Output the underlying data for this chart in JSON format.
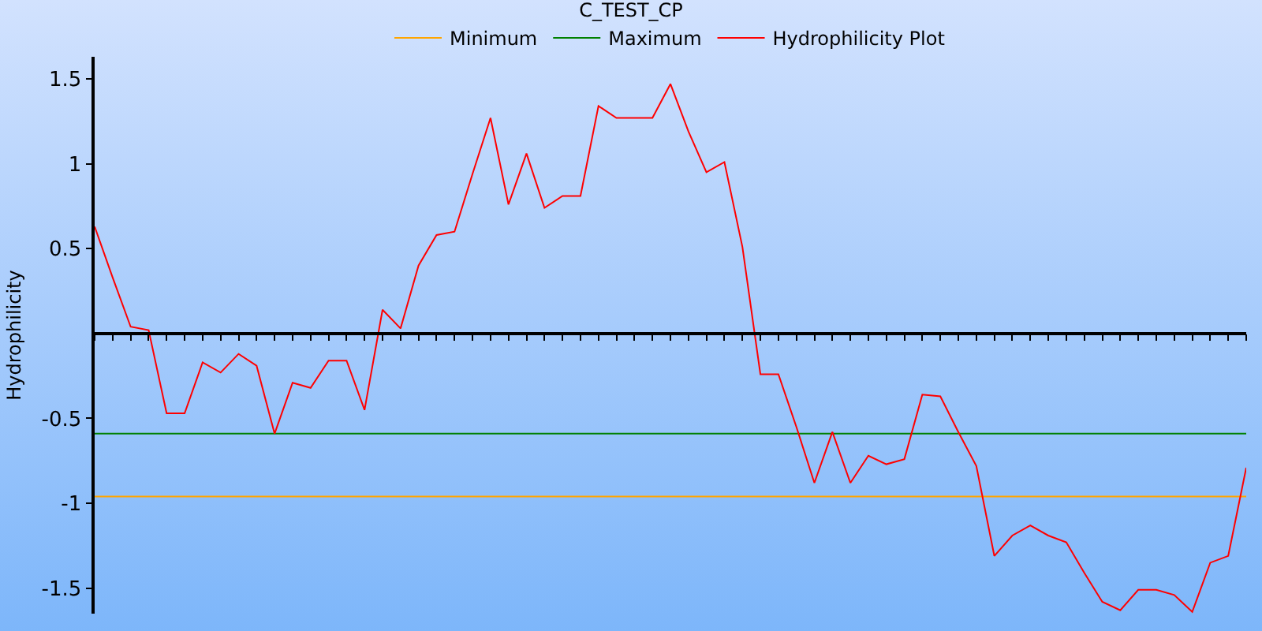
{
  "chart_data": {
    "type": "line",
    "title": "C_TEST_CP",
    "ylabel": "Hydrophilicity",
    "categories": [
      null,
      null,
      null,
      null,
      null,
      null,
      null,
      null,
      null,
      null,
      null,
      null,
      null,
      null,
      null,
      null,
      null,
      null,
      null,
      null,
      null,
      null,
      null,
      null,
      null,
      null,
      null,
      null,
      null,
      null,
      null,
      null,
      null,
      null,
      null,
      null,
      null,
      null,
      null,
      null,
      null,
      null,
      null,
      null,
      null,
      null,
      null,
      null,
      null,
      null,
      null,
      null,
      null,
      null,
      null,
      null,
      null,
      null,
      null,
      null,
      null,
      null,
      null,
      null,
      null
    ],
    "series": [
      {
        "name": "Minimum",
        "color": "#ffa500",
        "values": [
          -0.96,
          -0.96,
          -0.96,
          -0.96,
          -0.96,
          -0.96,
          -0.96,
          -0.96,
          -0.96,
          -0.96,
          -0.96,
          -0.96,
          -0.96,
          -0.96,
          -0.96,
          -0.96,
          -0.96,
          -0.96,
          -0.96,
          -0.96,
          -0.96,
          -0.96,
          -0.96,
          -0.96,
          -0.96,
          -0.96,
          -0.96,
          -0.96,
          -0.96,
          -0.96,
          -0.96,
          -0.96,
          -0.96,
          -0.96,
          -0.96,
          -0.96,
          -0.96,
          -0.96,
          -0.96,
          -0.96,
          -0.96,
          -0.96,
          -0.96,
          -0.96,
          -0.96,
          -0.96,
          -0.96,
          -0.96,
          -0.96,
          -0.96,
          -0.96,
          -0.96,
          -0.96,
          -0.96,
          -0.96,
          -0.96,
          -0.96,
          -0.96,
          -0.96,
          -0.96,
          -0.96,
          -0.96,
          -0.96,
          -0.96,
          -0.96
        ]
      },
      {
        "name": "Maximum",
        "color": "#008000",
        "values": [
          -0.59,
          -0.59,
          -0.59,
          -0.59,
          -0.59,
          -0.59,
          -0.59,
          -0.59,
          -0.59,
          -0.59,
          -0.59,
          -0.59,
          -0.59,
          -0.59,
          -0.59,
          -0.59,
          -0.59,
          -0.59,
          -0.59,
          -0.59,
          -0.59,
          -0.59,
          -0.59,
          -0.59,
          -0.59,
          -0.59,
          -0.59,
          -0.59,
          -0.59,
          -0.59,
          -0.59,
          -0.59,
          -0.59,
          -0.59,
          -0.59,
          -0.59,
          -0.59,
          -0.59,
          -0.59,
          -0.59,
          -0.59,
          -0.59,
          -0.59,
          -0.59,
          -0.59,
          -0.59,
          -0.59,
          -0.59,
          -0.59,
          -0.59,
          -0.59,
          -0.59,
          -0.59,
          -0.59,
          -0.59,
          -0.59,
          -0.59,
          -0.59,
          -0.59,
          -0.59,
          -0.59,
          -0.59,
          -0.59,
          -0.59,
          -0.59
        ]
      },
      {
        "name": "Hydrophilicity Plot",
        "color": "#ff0000",
        "values": [
          0.63,
          0.33,
          0.04,
          0.02,
          -0.47,
          -0.47,
          -0.17,
          -0.23,
          -0.12,
          -0.19,
          -0.59,
          -0.29,
          -0.32,
          -0.16,
          -0.16,
          -0.45,
          0.14,
          0.03,
          0.4,
          0.58,
          0.6,
          0.94,
          1.27,
          0.76,
          1.06,
          0.74,
          0.81,
          0.81,
          1.34,
          1.27,
          1.27,
          1.27,
          1.47,
          1.19,
          0.95,
          1.01,
          0.51,
          -0.24,
          -0.24,
          -0.55,
          -0.88,
          -0.58,
          -0.88,
          -0.72,
          -0.77,
          -0.74,
          -0.36,
          -0.37,
          -0.58,
          -0.78,
          -1.31,
          -1.19,
          -1.13,
          -1.19,
          -1.23,
          -1.41,
          -1.58,
          -1.63,
          -1.51,
          -1.51,
          -1.54,
          -1.64,
          -1.35,
          -1.31,
          -0.79
        ]
      }
    ],
    "ylim": [
      -1.65,
      1.63
    ],
    "yticks": [
      -1.5,
      -1,
      -0.5,
      0.5,
      1,
      1.5
    ],
    "tick_labels": "y",
    "legend": "top",
    "marker": "none",
    "line_style": "solid",
    "grid": false
  }
}
